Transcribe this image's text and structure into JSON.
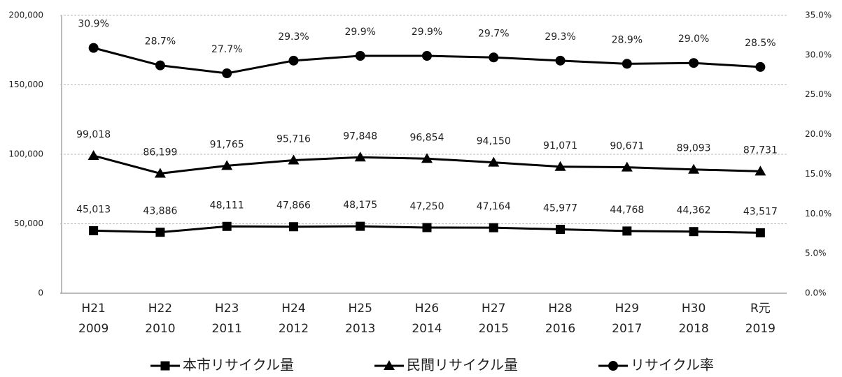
{
  "chart_data": {
    "type": "line",
    "categories": [
      [
        "H21",
        "2009"
      ],
      [
        "H22",
        "2010"
      ],
      [
        "H23",
        "2011"
      ],
      [
        "H24",
        "2012"
      ],
      [
        "H25",
        "2013"
      ],
      [
        "H26",
        "2014"
      ],
      [
        "H27",
        "2015"
      ],
      [
        "H28",
        "2016"
      ],
      [
        "H29",
        "2017"
      ],
      [
        "H30",
        "2018"
      ],
      [
        "R元",
        "2019"
      ]
    ],
    "series": [
      {
        "name": "本市リサイクル量",
        "color": "#000000",
        "marker": "square",
        "values": [
          45013,
          43886,
          48111,
          47866,
          48175,
          47250,
          47164,
          45977,
          44768,
          44362,
          43517
        ],
        "value_labels": [
          "45,013",
          "43,886",
          "48,111",
          "47,866",
          "48,175",
          "47,250",
          "47,164",
          "45,977",
          "44,768",
          "44,362",
          "43,517"
        ]
      },
      {
        "name": "民間リサイクル量",
        "color": "#000000",
        "marker": "triangle",
        "values": [
          99018,
          86199,
          91765,
          95716,
          97848,
          96854,
          94150,
          91071,
          90671,
          89093,
          87731
        ],
        "value_labels": [
          "99,018",
          "86,199",
          "91,765",
          "95,716",
          "97,848",
          "96,854",
          "94,150",
          "91,071",
          "90,671",
          "89,093",
          "87,731"
        ]
      },
      {
        "name": "リサイクル率",
        "color": "#000000",
        "marker": "circle",
        "axis": "y2",
        "values": [
          30.9,
          28.7,
          27.7,
          29.3,
          29.9,
          29.9,
          29.7,
          29.3,
          28.9,
          29.0,
          28.5
        ],
        "value_labels": [
          "30.9%",
          "28.7%",
          "27.7%",
          "29.3%",
          "29.9%",
          "29.9%",
          "29.7%",
          "29.3%",
          "28.9%",
          "29.0%",
          "28.5%"
        ]
      }
    ],
    "ylim": [
      0,
      200000
    ],
    "yticks": [
      0,
      {
        "value": 50000,
        "label": "50,000"
      },
      {
        "value": 100000,
        "label": "100,000"
      },
      {
        "value": 150000,
        "label": "150,000"
      },
      {
        "value": 200000,
        "label": "200,000"
      }
    ],
    "y2lim": [
      0,
      35
    ],
    "y2ticks": [
      {
        "value": 0,
        "label": "0.0%"
      },
      {
        "value": 5,
        "label": "5.0%"
      },
      {
        "value": 10,
        "label": "10.0%"
      },
      {
        "value": 15,
        "label": "15.0%"
      },
      {
        "value": 20,
        "label": "20.0%"
      },
      {
        "value": 25,
        "label": "25.0%"
      },
      {
        "value": 30,
        "label": "30.0%"
      },
      {
        "value": 35,
        "label": "35.0%"
      }
    ],
    "grid": true,
    "legend": "bottom"
  }
}
